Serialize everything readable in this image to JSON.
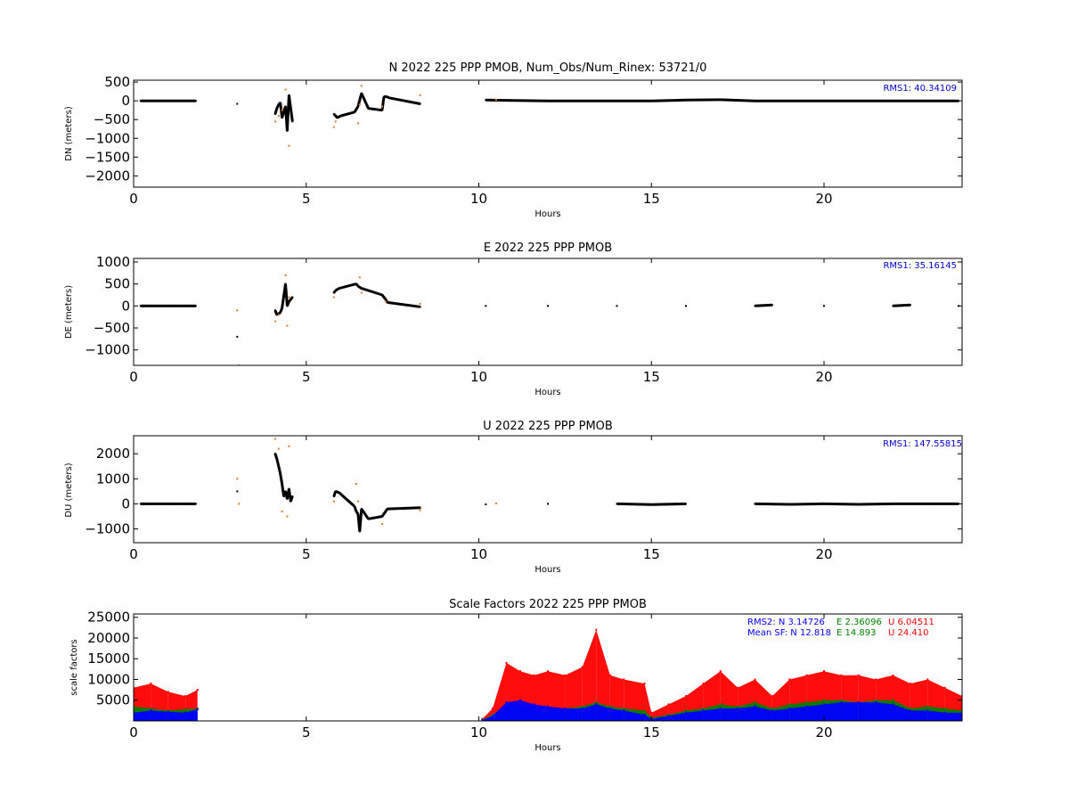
{
  "colors": {
    "primary_points": "#000000",
    "secondary_points": "#e07a2a",
    "rms_text": "#0000cc",
    "sf_n": "#0000ff",
    "sf_e": "#008000",
    "sf_u": "#ff0000"
  },
  "chart_data": [
    {
      "type": "scatter",
      "title": "N 2022 225 PPP  PMOB, Num_Obs/Num_Rinex: 53721/0",
      "xlabel": "Hours",
      "ylabel": "DN (meters)",
      "xlim": [
        0,
        24
      ],
      "ylim": [
        -2300,
        550
      ],
      "xticks": [
        0,
        5,
        10,
        15,
        20
      ],
      "yticks": [
        500,
        0,
        -500,
        -1000,
        -1500,
        -2000
      ],
      "ytick_labels": [
        "500",
        "0",
        "−500",
        "−1000",
        "−1500",
        "−2000"
      ],
      "annotation": "RMS1: 40.34109",
      "series": [
        {
          "role": "primary",
          "x": [
            0.2,
            0.6,
            1.0,
            1.4,
            1.8,
            3.0,
            4.1,
            4.15,
            4.2,
            4.25,
            4.3,
            4.4,
            4.45,
            4.5,
            4.6,
            5.8,
            5.9,
            6.0,
            6.4,
            6.5,
            6.6,
            6.8,
            7.2,
            7.25,
            7.3,
            7.4,
            8.3,
            10.2,
            11.0,
            12.0,
            13.0,
            14.0,
            15.0,
            16.0,
            17.0,
            18.0,
            19.0,
            20.0,
            21.0,
            22.0,
            23.0,
            23.9
          ],
          "y": [
            0,
            0,
            0,
            0,
            0,
            -80,
            -350,
            -200,
            -100,
            -50,
            -450,
            -150,
            -800,
            150,
            -550,
            -350,
            -450,
            -400,
            -300,
            -150,
            200,
            -200,
            -250,
            100,
            120,
            80,
            -80,
            20,
            10,
            0,
            0,
            0,
            0,
            20,
            30,
            0,
            0,
            0,
            0,
            0,
            0,
            0
          ]
        },
        {
          "role": "secondary",
          "x": [
            4.1,
            4.2,
            4.3,
            4.4,
            4.5,
            5.8,
            5.85,
            6.5,
            6.55,
            6.6,
            7.2,
            8.3,
            10.5
          ],
          "y": [
            -550,
            -400,
            -250,
            300,
            -1200,
            -700,
            -550,
            -600,
            -100,
            400,
            -150,
            150,
            30
          ]
        }
      ]
    },
    {
      "type": "scatter",
      "title": "E 2022 225 PPP  PMOB",
      "xlabel": "Hours",
      "ylabel": "DE (meters)",
      "xlim": [
        0,
        24
      ],
      "ylim": [
        -1350,
        1080
      ],
      "xticks": [
        0,
        5,
        10,
        15,
        20
      ],
      "yticks": [
        1000,
        500,
        0,
        -500,
        -1000
      ],
      "ytick_labels": [
        "1000",
        "500",
        "0",
        "−500",
        "−1000"
      ],
      "annotation": "RMS1: 35.16145",
      "series": [
        {
          "role": "primary",
          "x": [
            0.2,
            0.6,
            1.0,
            1.4,
            1.8,
            3.0,
            4.1,
            4.15,
            4.2,
            4.25,
            4.3,
            4.4,
            4.45,
            4.5,
            4.6,
            5.8,
            5.85,
            5.95,
            6.45,
            6.5,
            6.6,
            6.8,
            7.2,
            7.25,
            7.3,
            7.35,
            8.3,
            10.2,
            12.0,
            14.0,
            16.0,
            18.0,
            18.5,
            20.0,
            22.0,
            22.5,
            23.9
          ],
          "y": [
            0,
            0,
            0,
            0,
            0,
            -700,
            -100,
            -200,
            -180,
            -150,
            -50,
            500,
            0,
            100,
            200,
            300,
            350,
            400,
            500,
            450,
            400,
            350,
            250,
            200,
            150,
            80,
            -20,
            0,
            0,
            0,
            0,
            0,
            20,
            0,
            0,
            20,
            0
          ]
        },
        {
          "role": "secondary",
          "x": [
            3.0,
            3.05,
            4.1,
            4.2,
            4.4,
            4.45,
            4.5,
            5.8,
            6.55,
            6.6,
            7.3,
            8.3
          ],
          "y": [
            -100,
            -1350,
            -350,
            -200,
            700,
            -450,
            200,
            200,
            650,
            300,
            100,
            50
          ]
        }
      ]
    },
    {
      "type": "scatter",
      "title": "U 2022 225 PPP  PMOB",
      "xlabel": "Hours",
      "ylabel": "DU (meters)",
      "xlim": [
        0,
        24
      ],
      "ylim": [
        -1550,
        2720
      ],
      "xticks": [
        0,
        5,
        10,
        15,
        20
      ],
      "yticks": [
        2000,
        1000,
        0,
        -1000
      ],
      "ytick_labels": [
        "2000",
        "1000",
        "0",
        "−1000"
      ],
      "annotation": "RMS1: 147.55815",
      "series": [
        {
          "role": "primary",
          "x": [
            0.2,
            0.6,
            1.0,
            1.4,
            1.8,
            3.0,
            4.1,
            4.15,
            4.2,
            4.25,
            4.3,
            4.35,
            4.4,
            4.45,
            4.5,
            4.55,
            4.6,
            5.8,
            5.85,
            5.95,
            6.4,
            6.45,
            6.5,
            6.55,
            6.6,
            6.8,
            7.2,
            7.25,
            7.3,
            7.35,
            8.3,
            10.2,
            12.0,
            14.0,
            15.0,
            16.0,
            18.0,
            19.0,
            20.0,
            21.0,
            22.0,
            23.0,
            23.9
          ],
          "y": [
            0,
            0,
            0,
            0,
            0,
            500,
            2000,
            1800,
            1500,
            1200,
            800,
            300,
            500,
            200,
            600,
            100,
            300,
            300,
            500,
            450,
            -100,
            -300,
            -400,
            -1100,
            -200,
            -600,
            -500,
            -400,
            -300,
            -200,
            -150,
            -20,
            0,
            0,
            -30,
            0,
            0,
            -20,
            0,
            -20,
            0,
            0,
            0
          ]
        },
        {
          "role": "secondary",
          "x": [
            3.0,
            3.05,
            4.1,
            4.2,
            4.3,
            4.45,
            4.5,
            5.8,
            6.45,
            6.5,
            7.2,
            8.3,
            10.5
          ],
          "y": [
            1000,
            0,
            2600,
            2200,
            -300,
            -500,
            2300,
            100,
            800,
            100,
            -800,
            -250,
            20
          ]
        }
      ]
    },
    {
      "type": "scatter",
      "title": "Scale Factors 2022 225 PPP  PMOB",
      "xlabel": "Hours",
      "ylabel": "scale factors",
      "xlim": [
        0,
        24
      ],
      "ylim": [
        0,
        25800
      ],
      "xticks": [
        0,
        5,
        10,
        15,
        20
      ],
      "yticks": [
        25000,
        20000,
        15000,
        10000,
        5000
      ],
      "ytick_labels": [
        "25000",
        "20000",
        "15000",
        "10000",
        "5000"
      ],
      "annotation_lines": [
        [
          {
            "text": "RMS2: N  3.14726",
            "color": "#0000ff"
          },
          {
            "text": "E  2.36096",
            "color": "#008000"
          },
          {
            "text": "U  6.04511",
            "color": "#ff0000"
          }
        ],
        [
          {
            "text": "Mean SF: N  12.818",
            "color": "#0000ff"
          },
          {
            "text": "E  14.893",
            "color": "#008000"
          },
          {
            "text": "U  24.410",
            "color": "#ff0000"
          }
        ]
      ],
      "series": [
        {
          "name": "U",
          "x": [
            0.0,
            0.5,
            1.0,
            1.5,
            1.85,
            10.1,
            10.4,
            10.8,
            11.2,
            11.6,
            12.0,
            12.5,
            13.0,
            13.4,
            13.8,
            14.2,
            14.8,
            15.0,
            15.5,
            16.0,
            16.5,
            17.0,
            17.5,
            18.0,
            18.5,
            19.0,
            19.5,
            20.0,
            20.5,
            21.0,
            21.5,
            22.0,
            22.5,
            23.0,
            23.5,
            24.0
          ],
          "y": [
            8000,
            9000,
            7000,
            6000,
            7500,
            500,
            3000,
            14000,
            12000,
            11000,
            12000,
            11000,
            13000,
            22000,
            11000,
            10000,
            9000,
            2000,
            4000,
            6000,
            9000,
            12000,
            8000,
            10000,
            6000,
            10000,
            11000,
            12000,
            11000,
            11000,
            10000,
            11000,
            9000,
            10000,
            8000,
            6000
          ]
        },
        {
          "name": "E",
          "x": [
            0.0,
            0.5,
            1.0,
            1.5,
            1.85,
            10.1,
            10.4,
            10.8,
            11.2,
            11.6,
            12.0,
            12.5,
            13.0,
            13.4,
            13.8,
            14.2,
            14.8,
            15.0,
            15.5,
            16.0,
            16.5,
            17.0,
            17.5,
            18.0,
            18.5,
            19.0,
            19.5,
            20.0,
            20.5,
            21.0,
            21.5,
            22.0,
            22.5,
            23.0,
            23.5,
            24.0
          ],
          "y": [
            3500,
            3000,
            2500,
            2800,
            3000,
            300,
            1500,
            4000,
            3500,
            3000,
            3200,
            3000,
            3500,
            4500,
            3500,
            3000,
            2500,
            800,
            1500,
            2500,
            3000,
            4000,
            3500,
            4500,
            3000,
            4000,
            4500,
            5000,
            5000,
            4500,
            5000,
            5000,
            3000,
            3500,
            3000,
            2500
          ]
        },
        {
          "name": "N",
          "x": [
            0.0,
            0.5,
            1.0,
            1.5,
            1.85,
            10.1,
            10.4,
            10.8,
            11.2,
            11.6,
            12.0,
            12.5,
            13.0,
            13.4,
            13.8,
            14.2,
            14.8,
            15.0,
            15.5,
            16.0,
            16.5,
            17.0,
            17.5,
            18.0,
            18.5,
            19.0,
            19.5,
            20.0,
            20.5,
            21.0,
            21.5,
            22.0,
            22.5,
            23.0,
            23.5,
            24.0
          ],
          "y": [
            2000,
            2500,
            2200,
            2000,
            2800,
            200,
            1200,
            4500,
            5000,
            4000,
            3500,
            3000,
            3000,
            4000,
            3000,
            2500,
            1500,
            500,
            1200,
            2000,
            2500,
            3000,
            3000,
            3500,
            2500,
            3000,
            3500,
            4000,
            4500,
            4500,
            4500,
            4000,
            2500,
            2500,
            2000,
            2000
          ]
        }
      ]
    }
  ]
}
